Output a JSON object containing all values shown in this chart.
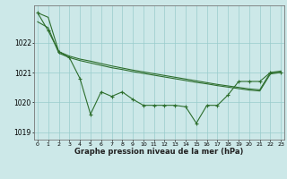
{
  "hours": [
    0,
    1,
    2,
    3,
    4,
    5,
    6,
    7,
    8,
    9,
    10,
    11,
    12,
    13,
    14,
    15,
    16,
    17,
    18,
    19,
    20,
    21,
    22,
    23
  ],
  "line_jagged": [
    1023.0,
    1022.4,
    1021.7,
    1021.5,
    1020.8,
    1019.6,
    1020.35,
    1020.2,
    1020.35,
    1020.1,
    1019.9,
    1019.9,
    1019.9,
    1019.9,
    1019.85,
    1019.3,
    1019.9,
    1019.9,
    1020.25,
    1020.7,
    1020.7,
    1020.7,
    1021.0,
    1021.0
  ],
  "line_smooth1": [
    1023.0,
    1022.85,
    1021.7,
    1021.55,
    1021.45,
    1021.38,
    1021.3,
    1021.22,
    1021.15,
    1021.08,
    1021.02,
    1020.96,
    1020.9,
    1020.84,
    1020.78,
    1020.72,
    1020.66,
    1020.6,
    1020.55,
    1020.5,
    1020.45,
    1020.42,
    1021.0,
    1021.05
  ],
  "line_smooth2": [
    1022.7,
    1022.5,
    1021.65,
    1021.5,
    1021.4,
    1021.32,
    1021.24,
    1021.16,
    1021.1,
    1021.03,
    1020.97,
    1020.91,
    1020.85,
    1020.79,
    1020.73,
    1020.67,
    1020.62,
    1020.56,
    1020.51,
    1020.46,
    1020.41,
    1020.38,
    1020.95,
    1021.0
  ],
  "bg_color": "#cce8e8",
  "grid_color": "#99cccc",
  "line_color": "#2d6e2d",
  "xlabel": "Graphe pression niveau de la mer (hPa)",
  "ylim": [
    1018.75,
    1023.25
  ],
  "yticks": [
    1019,
    1020,
    1021,
    1022
  ],
  "xticks": [
    0,
    1,
    2,
    3,
    4,
    5,
    6,
    7,
    8,
    9,
    10,
    11,
    12,
    13,
    14,
    15,
    16,
    17,
    18,
    19,
    20,
    21,
    22,
    23
  ]
}
